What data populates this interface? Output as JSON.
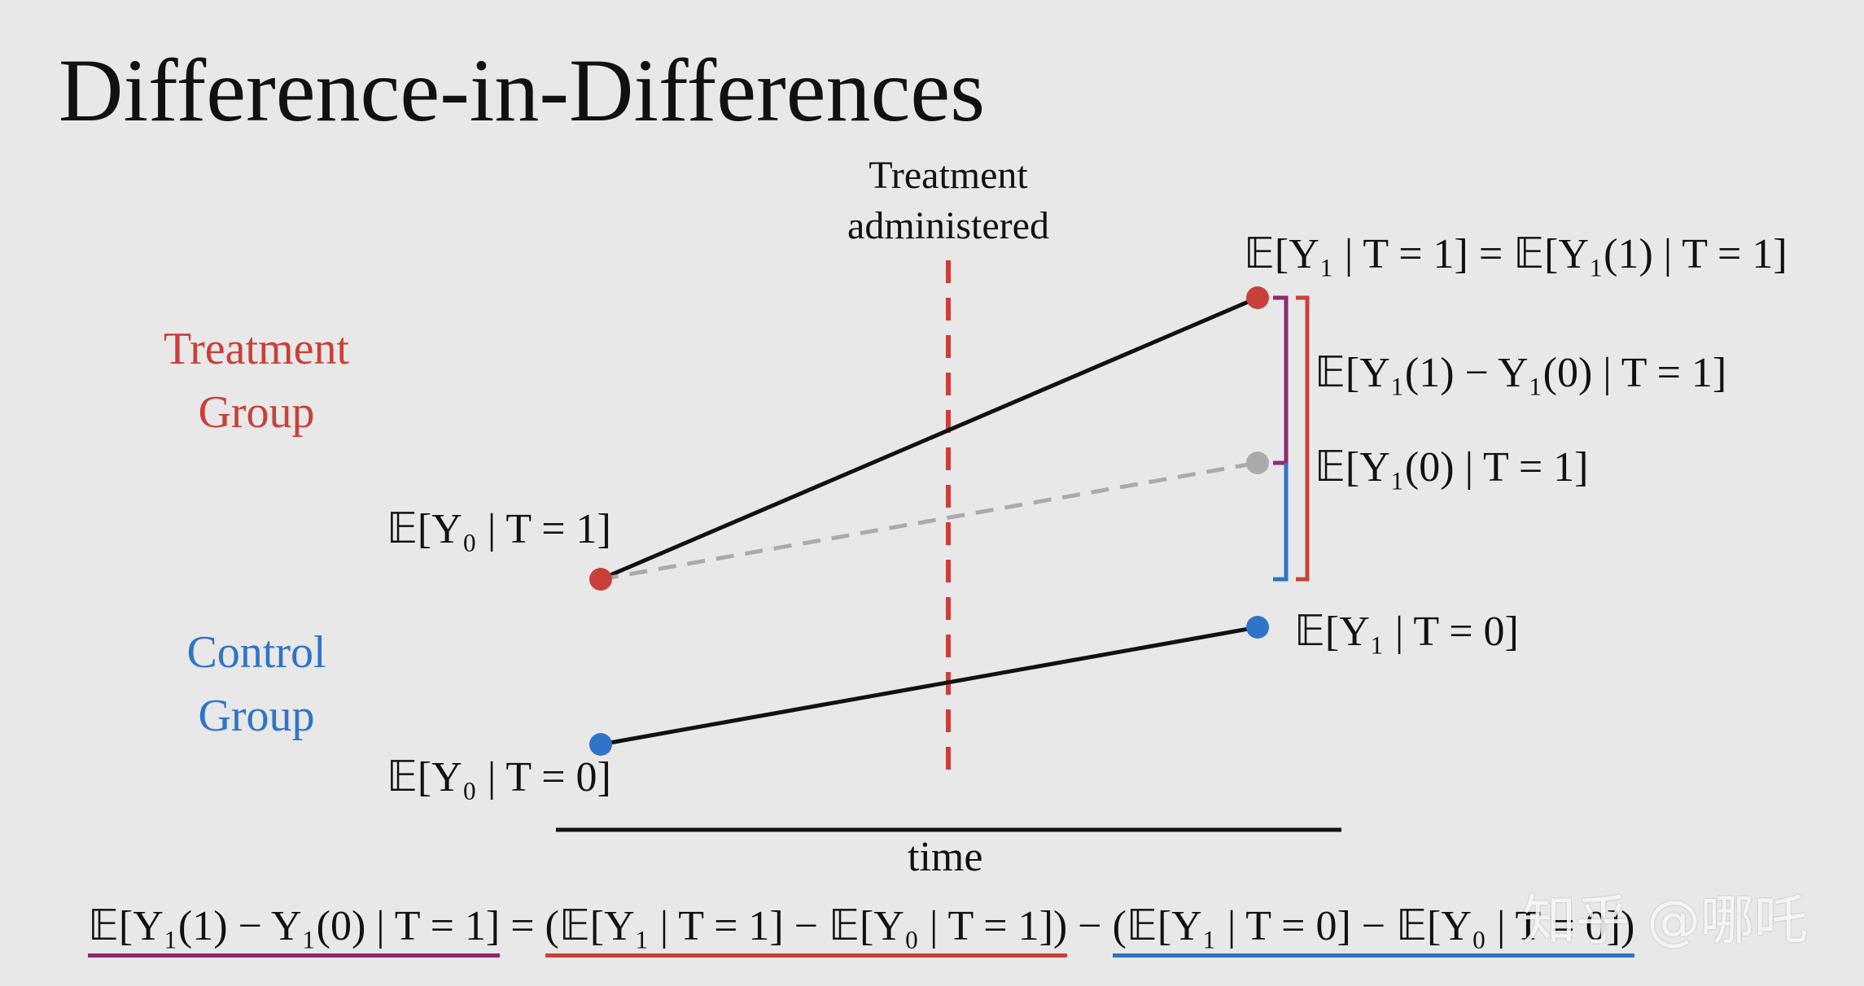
{
  "title": "Difference-in-Differences",
  "treatment_label": "Treatment administered",
  "treatment_label_lines": [
    "Treatment",
    "administered"
  ],
  "groups": {
    "treatment": {
      "lines": [
        "Treatment",
        "Group"
      ],
      "color": "#c9403a"
    },
    "control": {
      "lines": [
        "Control",
        "Group"
      ],
      "color": "#2f74c8"
    }
  },
  "axis_label": "time",
  "labels": {
    "treat_pre": "𝔼[Y₀ | T = 1]",
    "treat_post": "𝔼[Y₁ | T = 1] = 𝔼[Y₁(1) | T = 1]",
    "effect": "𝔼[Y₁(1) − Y₁(0) | T = 1]",
    "counterfactual": "𝔼[Y₁(0) | T = 1]",
    "control_post": "𝔼[Y₁ | T = 0]",
    "control_pre": "𝔼[Y₀ | T = 0]"
  },
  "equation": {
    "lhs": "𝔼[Y₁(1) − Y₁(0) | T = 1]",
    "eq": " = ",
    "term1": "(𝔼[Y₁ | T = 1] − 𝔼[Y₀ | T = 1])",
    "minus": " − ",
    "term2": "(𝔼[Y₁ | T = 0] − 𝔼[Y₀ | T = 0])"
  },
  "colors": {
    "treatment": "#c9403a",
    "control": "#2f74c8",
    "counterfactual": "#aaaaaa",
    "effect_bracket": "#8e2a6e",
    "background": "#e8e8e8"
  },
  "watermark": "知乎 @哪吒"
}
